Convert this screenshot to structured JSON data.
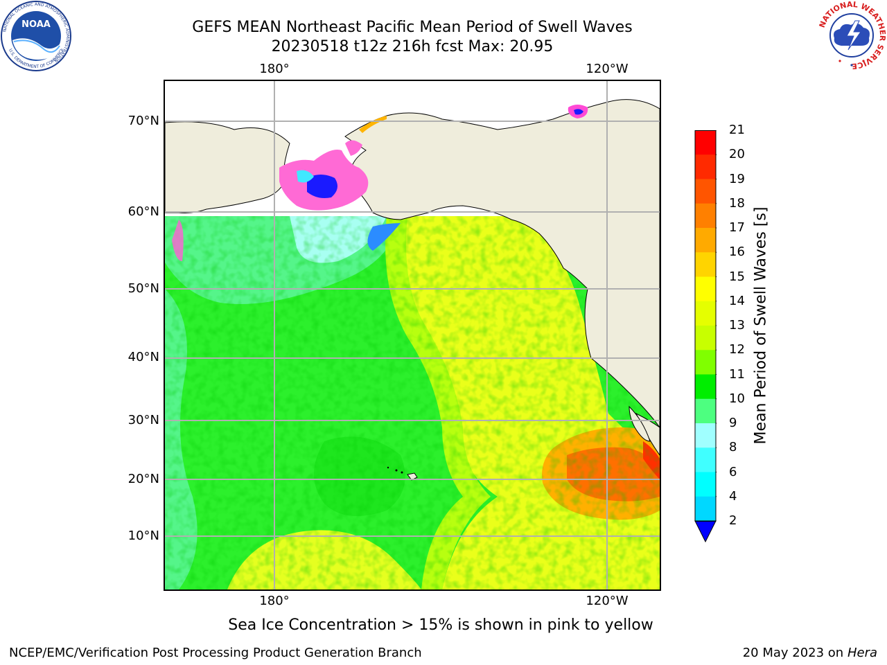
{
  "title": {
    "line1": "GEFS MEAN Northeast Pacific Mean Period of Swell Waves",
    "line2": "20230518 t12z 216h fcst   Max: 20.95"
  },
  "map": {
    "lat_labels": [
      "70°N",
      "60°N",
      "50°N",
      "40°N",
      "30°N",
      "20°N",
      "10°N"
    ],
    "lon_labels_top": [
      "180°",
      "120°W"
    ],
    "lon_labels_bottom": [
      "180°",
      "120°W"
    ]
  },
  "colorbar": {
    "label": "Mean Period of Swell Waves [s]",
    "ticks": [
      "21",
      "20",
      "19",
      "18",
      "17",
      "16",
      "15",
      "14",
      "13",
      "12",
      "11",
      "10",
      "9",
      "8",
      "6",
      "4",
      "2"
    ],
    "colors": [
      "#ff0000",
      "#ff2a00",
      "#ff5500",
      "#ff8000",
      "#ffaa00",
      "#ffd400",
      "#ffff00",
      "#e5ff00",
      "#c8ff00",
      "#80ff00",
      "#00ee00",
      "#4dff80",
      "#a0ffff",
      "#40ffff",
      "#00ffff",
      "#00d8ff",
      "#0080ff"
    ],
    "extend_color": "#0000ff"
  },
  "footnote": "Sea Ice Concentration > 15% is shown in pink to yellow",
  "credits": {
    "left": "NCEP/EMC/Verification Post Processing Product Generation Branch",
    "right_date": "20 May 2023 on",
    "right_host": "Hera"
  },
  "logos": {
    "noaa_text": "NOAA",
    "noaa_ring_text": "NATIONAL OCEANIC AND ATMOSPHERIC ADMINISTRATION",
    "noaa_ring_text_bottom": "U.S. DEPARTMENT OF COMMERCE",
    "nws_ring_text": "NATIONAL WEATHER SERVICE",
    "noaa_icon": "noaa-logo-icon",
    "nws_icon": "nws-logo-icon"
  }
}
